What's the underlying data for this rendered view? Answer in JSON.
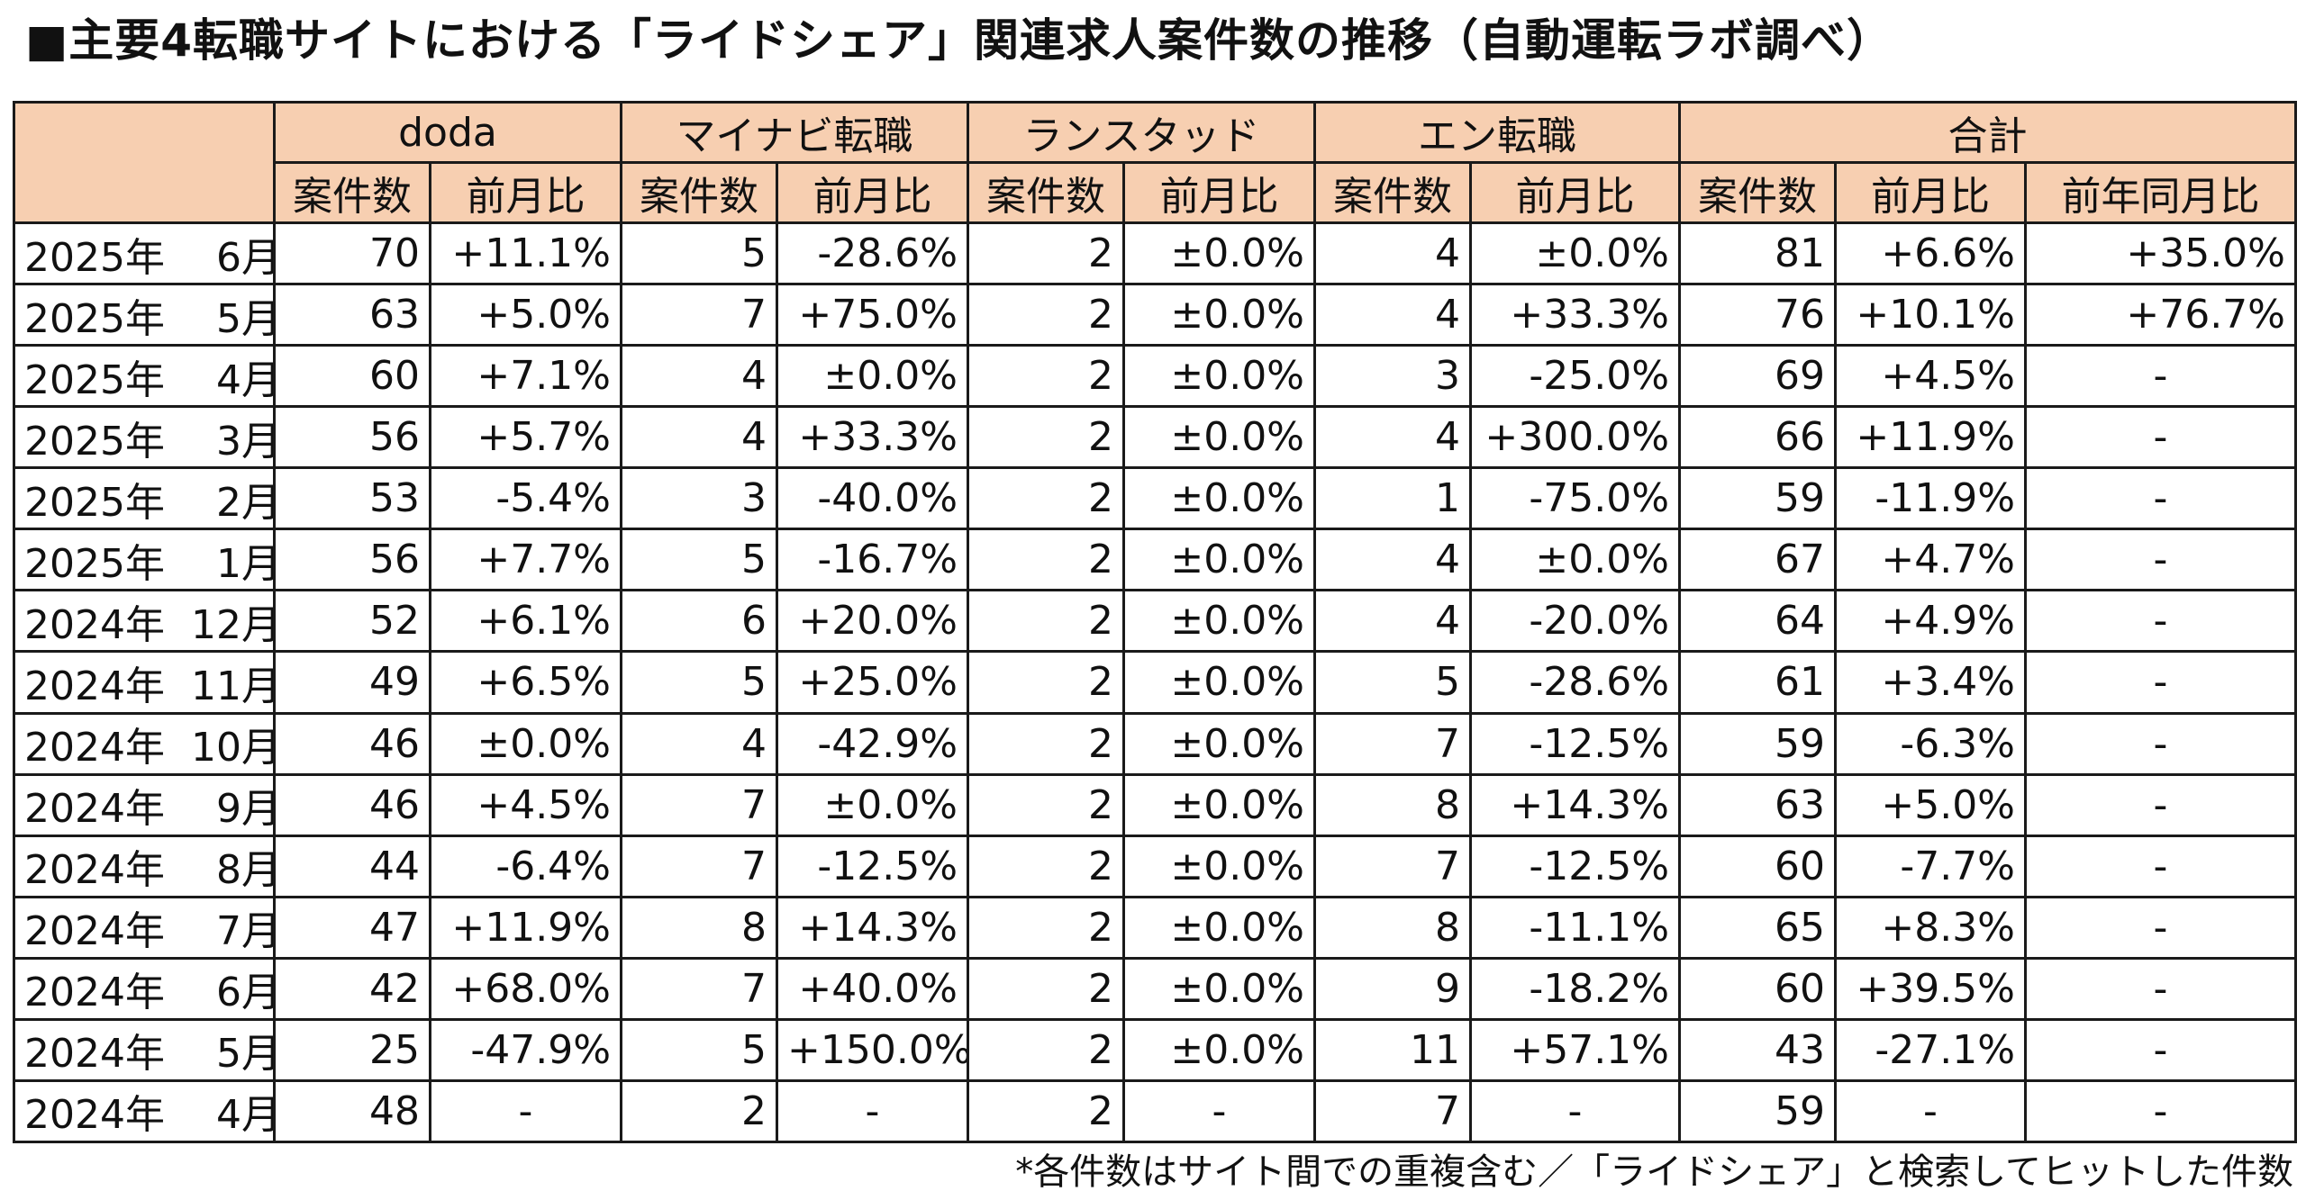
{
  "title": "■主要4転職サイトにおける「ライドシェア」関連求人案件数の推移（自動運転ラボ調べ）",
  "header": {
    "groups": [
      "doda",
      "マイナビ転職",
      "ランスタッド",
      "エン転職",
      "合計"
    ],
    "count_label": "案件数",
    "mom_label": "前月比",
    "yoy_label": "前年同月比"
  },
  "rows": [
    {
      "year": "2025年",
      "month": "6月",
      "v": [
        "70",
        "+11.1%",
        "5",
        "-28.6%",
        "2",
        "±0.0%",
        "4",
        "±0.0%",
        "81",
        "+6.6%",
        "+35.0%"
      ]
    },
    {
      "year": "2025年",
      "month": "5月",
      "v": [
        "63",
        "+5.0%",
        "7",
        "+75.0%",
        "2",
        "±0.0%",
        "4",
        "+33.3%",
        "76",
        "+10.1%",
        "+76.7%"
      ]
    },
    {
      "year": "2025年",
      "month": "4月",
      "v": [
        "60",
        "+7.1%",
        "4",
        "±0.0%",
        "2",
        "±0.0%",
        "3",
        "-25.0%",
        "69",
        "+4.5%",
        "-"
      ]
    },
    {
      "year": "2025年",
      "month": "3月",
      "v": [
        "56",
        "+5.7%",
        "4",
        "+33.3%",
        "2",
        "±0.0%",
        "4",
        "+300.0%",
        "66",
        "+11.9%",
        "-"
      ]
    },
    {
      "year": "2025年",
      "month": "2月",
      "v": [
        "53",
        "-5.4%",
        "3",
        "-40.0%",
        "2",
        "±0.0%",
        "1",
        "-75.0%",
        "59",
        "-11.9%",
        "-"
      ]
    },
    {
      "year": "2025年",
      "month": "1月",
      "v": [
        "56",
        "+7.7%",
        "5",
        "-16.7%",
        "2",
        "±0.0%",
        "4",
        "±0.0%",
        "67",
        "+4.7%",
        "-"
      ]
    },
    {
      "year": "2024年",
      "month": "12月",
      "v": [
        "52",
        "+6.1%",
        "6",
        "+20.0%",
        "2",
        "±0.0%",
        "4",
        "-20.0%",
        "64",
        "+4.9%",
        "-"
      ]
    },
    {
      "year": "2024年",
      "month": "11月",
      "v": [
        "49",
        "+6.5%",
        "5",
        "+25.0%",
        "2",
        "±0.0%",
        "5",
        "-28.6%",
        "61",
        "+3.4%",
        "-"
      ]
    },
    {
      "year": "2024年",
      "month": "10月",
      "v": [
        "46",
        "±0.0%",
        "4",
        "-42.9%",
        "2",
        "±0.0%",
        "7",
        "-12.5%",
        "59",
        "-6.3%",
        "-"
      ]
    },
    {
      "year": "2024年",
      "month": "9月",
      "v": [
        "46",
        "+4.5%",
        "7",
        "±0.0%",
        "2",
        "±0.0%",
        "8",
        "+14.3%",
        "63",
        "+5.0%",
        "-"
      ]
    },
    {
      "year": "2024年",
      "month": "8月",
      "v": [
        "44",
        "-6.4%",
        "7",
        "-12.5%",
        "2",
        "±0.0%",
        "7",
        "-12.5%",
        "60",
        "-7.7%",
        "-"
      ]
    },
    {
      "year": "2024年",
      "month": "7月",
      "v": [
        "47",
        "+11.9%",
        "8",
        "+14.3%",
        "2",
        "±0.0%",
        "8",
        "-11.1%",
        "65",
        "+8.3%",
        "-"
      ]
    },
    {
      "year": "2024年",
      "month": "6月",
      "v": [
        "42",
        "+68.0%",
        "7",
        "+40.0%",
        "2",
        "±0.0%",
        "9",
        "-18.2%",
        "60",
        "+39.5%",
        "-"
      ]
    },
    {
      "year": "2024年",
      "month": "5月",
      "v": [
        "25",
        "-47.9%",
        "5",
        "+150.0%",
        "2",
        "±0.0%",
        "11",
        "+57.1%",
        "43",
        "-27.1%",
        "-"
      ]
    },
    {
      "year": "2024年",
      "month": "4月",
      "v": [
        "48",
        "-",
        "2",
        "-",
        "2",
        "-",
        "7",
        "-",
        "59",
        "-",
        "-"
      ]
    }
  ],
  "footnote": "*各件数はサイト間での重複含む／「ライドシェア」と検索してヒットした件数"
}
